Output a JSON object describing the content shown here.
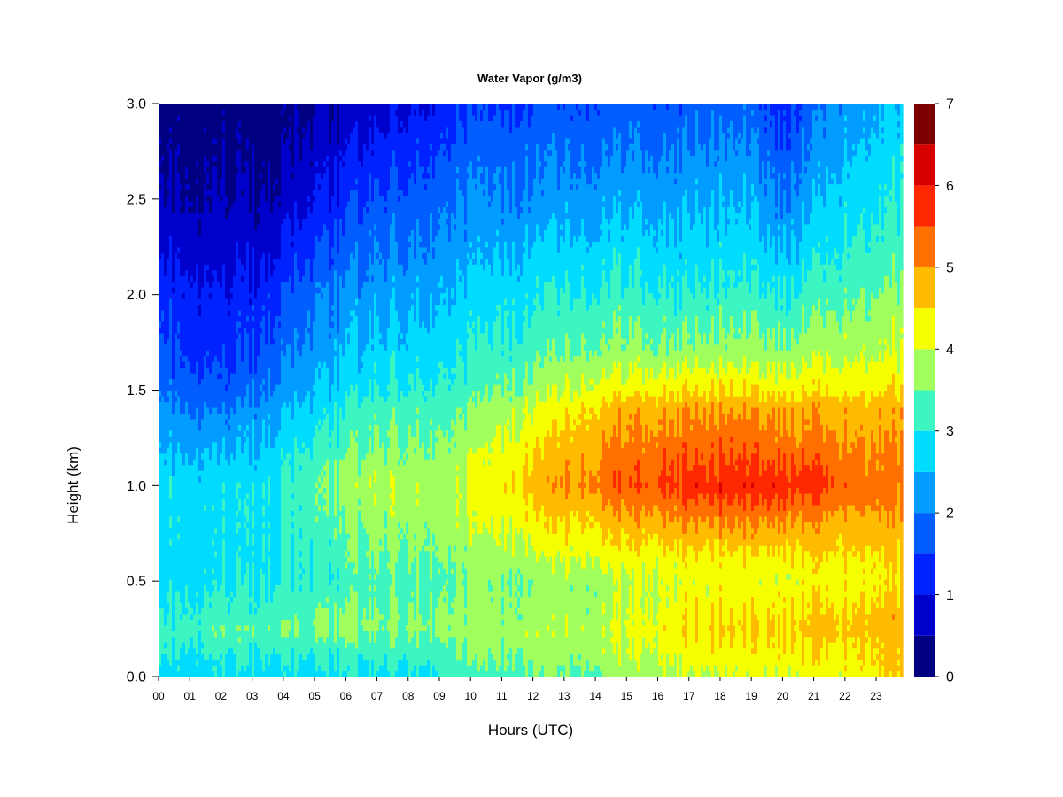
{
  "chart_data": {
    "type": "heatmap",
    "title": "Water Vapor (g/m3)",
    "xlabel": "Hours (UTC)",
    "ylabel": "Height (km)",
    "x_ticks": [
      "00",
      "01",
      "02",
      "03",
      "04",
      "05",
      "06",
      "07",
      "08",
      "09",
      "10",
      "11",
      "12",
      "13",
      "14",
      "15",
      "16",
      "17",
      "18",
      "19",
      "20",
      "21",
      "22",
      "23"
    ],
    "y_ticks": [
      "0.0",
      "0.5",
      "1.0",
      "1.5",
      "2.0",
      "2.5",
      "3.0"
    ],
    "xlim": [
      0,
      23.85
    ],
    "ylim": [
      0.0,
      3.0
    ],
    "colorbar": {
      "ticks": [
        "0",
        "1",
        "2",
        "3",
        "4",
        "5",
        "6",
        "7"
      ],
      "range": [
        0,
        7
      ],
      "levels": [
        0,
        0.5,
        1,
        1.5,
        2,
        2.5,
        3,
        3.5,
        4,
        4.5,
        5,
        5.5,
        6,
        6.5,
        7
      ],
      "colors": [
        "#000080",
        "#0000cc",
        "#0022ff",
        "#005eff",
        "#009cff",
        "#00dcff",
        "#3cf5c0",
        "#a0ff5c",
        "#f5ff00",
        "#ffbb00",
        "#ff7000",
        "#ff2800",
        "#d60000",
        "#7d0000"
      ]
    },
    "profiles": {
      "heights_km": [
        0.0,
        0.1,
        0.25,
        0.3,
        0.5,
        0.6,
        0.8,
        1.0,
        1.2,
        1.4,
        1.5,
        1.7,
        2.0,
        2.2,
        2.5,
        2.8,
        3.0
      ],
      "columns": [
        {
          "hour": 0.0,
          "values": [
            2.7,
            2.9,
            3.1,
            3.0,
            2.8,
            2.8,
            2.8,
            2.8,
            2.4,
            2.1,
            1.9,
            1.6,
            1.3,
            0.95,
            0.5,
            0.35,
            0.3
          ]
        },
        {
          "hour": 2.0,
          "values": [
            2.8,
            3.0,
            3.4,
            3.2,
            2.9,
            2.8,
            2.8,
            2.8,
            2.4,
            1.9,
            1.6,
            1.3,
            1.0,
            0.8,
            0.5,
            0.3,
            0.25
          ]
        },
        {
          "hour": 3.5,
          "values": [
            2.8,
            3.0,
            3.4,
            3.3,
            3.0,
            2.9,
            2.9,
            2.9,
            2.6,
            2.3,
            2.0,
            1.7,
            1.3,
            0.95,
            0.55,
            0.3,
            0.25
          ]
        },
        {
          "hour": 5.0,
          "values": [
            2.8,
            3.0,
            3.5,
            3.5,
            3.1,
            3.1,
            3.2,
            3.4,
            3.1,
            2.7,
            2.5,
            2.2,
            1.9,
            1.5,
            1.0,
            0.6,
            0.4
          ]
        },
        {
          "hour": 7.0,
          "values": [
            2.9,
            3.1,
            3.6,
            3.6,
            3.3,
            3.5,
            3.7,
            3.9,
            3.6,
            3.3,
            3.0,
            2.7,
            2.3,
            2.0,
            1.6,
            1.1,
            0.8
          ]
        },
        {
          "hour": 9.5,
          "values": [
            3.1,
            3.4,
            3.7,
            3.7,
            3.5,
            3.6,
            3.8,
            3.9,
            3.7,
            3.4,
            3.2,
            2.9,
            2.6,
            2.3,
            2.0,
            1.6,
            1.3
          ]
        },
        {
          "hour": 12.0,
          "values": [
            3.4,
            3.6,
            3.8,
            3.7,
            3.6,
            3.8,
            4.3,
            4.7,
            4.4,
            4.0,
            3.7,
            3.3,
            2.9,
            2.6,
            2.1,
            1.8,
            1.5
          ]
        },
        {
          "hour": 14.0,
          "values": [
            3.5,
            3.7,
            3.9,
            3.8,
            3.7,
            4.1,
            4.6,
            5.2,
            5.0,
            4.6,
            4.2,
            3.6,
            3.1,
            2.8,
            2.3,
            1.9,
            1.6
          ]
        },
        {
          "hour": 17.0,
          "values": [
            4.0,
            4.2,
            4.5,
            4.4,
            4.2,
            4.3,
            5.0,
            5.8,
            5.4,
            5.0,
            4.5,
            3.7,
            3.1,
            2.8,
            2.4,
            2.0,
            1.7
          ]
        },
        {
          "hour": 19.0,
          "values": [
            4.1,
            4.3,
            4.6,
            4.5,
            4.2,
            4.3,
            5.1,
            5.9,
            5.4,
            5.0,
            4.5,
            3.8,
            3.2,
            2.9,
            2.5,
            2.1,
            1.8
          ]
        },
        {
          "hour": 20.0,
          "values": [
            4.1,
            4.3,
            4.6,
            4.5,
            4.2,
            4.3,
            5.0,
            5.9,
            5.3,
            4.9,
            4.4,
            3.7,
            3.0,
            2.6,
            2.0,
            1.6,
            1.3
          ]
        },
        {
          "hour": 22.0,
          "values": [
            4.2,
            4.4,
            4.6,
            4.6,
            4.3,
            4.4,
            4.8,
            5.4,
            5.1,
            4.8,
            4.4,
            3.9,
            3.4,
            3.1,
            2.8,
            2.4,
            2.2
          ]
        },
        {
          "hour": 23.85,
          "values": [
            4.6,
            4.7,
            4.8,
            4.8,
            4.5,
            4.5,
            4.9,
            5.2,
            5.0,
            4.8,
            4.5,
            4.0,
            3.6,
            3.3,
            3.0,
            2.8,
            2.6
          ]
        }
      ]
    }
  }
}
